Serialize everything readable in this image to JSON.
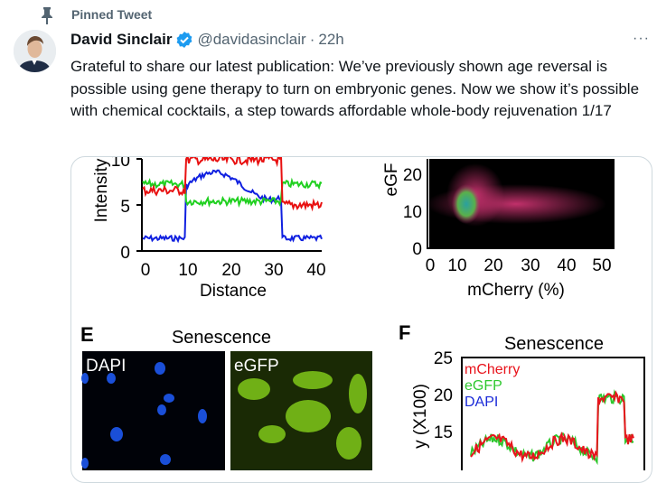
{
  "pinned_label": "Pinned Tweet",
  "author": {
    "name": "David Sinclair",
    "handle": "@davidasinclair",
    "separator": "·",
    "time": "22h",
    "verified": true
  },
  "more_label": "···",
  "tweet_text": "Grateful to share our latest publication: We’ve previously shown age reversal is possible using gene therapy to turn on embryonic genes. Now we show it’s possible with chemical cocktails, a step towards affordable whole-body rejuvenation 1/17",
  "colors": {
    "verified": "#1d9bf0",
    "secondary_text": "#536471",
    "border": "#cfd9de"
  },
  "figure": {
    "left_plot": {
      "ylabel": "Intensity",
      "xlabel": "Distance",
      "yticks": [
        "0",
        "5",
        "10"
      ],
      "xticks": [
        "0",
        "10",
        "20",
        "30",
        "40"
      ]
    },
    "right_plot": {
      "ylabel": "eGF",
      "xlabel": "mCherry (%)",
      "yticks": [
        "0",
        "10",
        "20"
      ],
      "xticks": [
        "0",
        "10",
        "20",
        "30",
        "40",
        "50"
      ]
    },
    "panel_e": {
      "letter": "E",
      "title": "Senescence",
      "dapi_label": "DAPI",
      "egfp_label": "eGFP"
    },
    "panel_f": {
      "letter": "F",
      "title": "Senescence",
      "ylabel": "y (X100)",
      "yticks": [
        "15",
        "20",
        "25"
      ],
      "legend": [
        "mCherry",
        "eGFP",
        "DAPI"
      ]
    }
  }
}
